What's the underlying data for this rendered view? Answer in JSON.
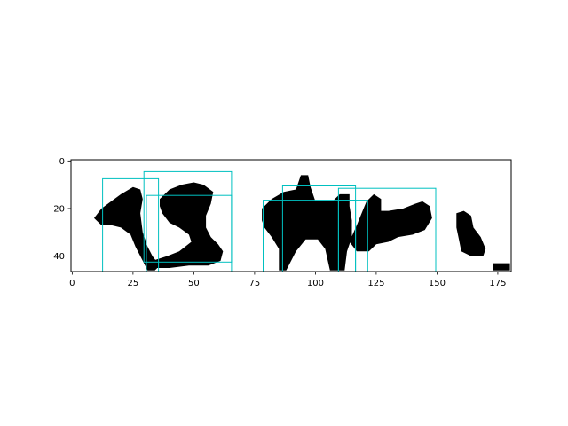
{
  "chart_data": {
    "type": "heatmap",
    "description_kind": "binary image with bounding boxes",
    "xlim": [
      -0.5,
      180.5
    ],
    "ylim": [
      46.5,
      -0.5
    ],
    "x_ticks": [
      0,
      25,
      50,
      75,
      100,
      125,
      150,
      175
    ],
    "y_ticks": [
      0,
      20,
      40
    ],
    "x_tick_labels": [
      "0",
      "25",
      "50",
      "75",
      "100",
      "125",
      "150",
      "175"
    ],
    "y_tick_labels": [
      "0",
      "20",
      "40"
    ],
    "image_colors": {
      "foreground": "#000000",
      "background": "#ffffff"
    },
    "box_color": "#00c0c0",
    "blobs": [
      {
        "name": "blob-1",
        "points": [
          [
            9,
            24
          ],
          [
            12,
            20
          ],
          [
            16,
            17
          ],
          [
            20,
            14
          ],
          [
            25,
            11
          ],
          [
            28,
            12
          ],
          [
            29,
            16
          ],
          [
            28,
            22
          ],
          [
            29,
            30
          ],
          [
            31,
            36
          ],
          [
            33,
            40
          ],
          [
            36,
            44
          ],
          [
            34,
            46
          ],
          [
            31,
            46
          ],
          [
            29,
            42
          ],
          [
            26,
            36
          ],
          [
            24,
            31
          ],
          [
            20,
            28
          ],
          [
            16,
            27
          ],
          [
            12,
            27
          ]
        ]
      },
      {
        "name": "blob-2",
        "points": [
          [
            36,
            16
          ],
          [
            40,
            12
          ],
          [
            45,
            10
          ],
          [
            50,
            9
          ],
          [
            54,
            10
          ],
          [
            58,
            13
          ],
          [
            57,
            18
          ],
          [
            55,
            23
          ],
          [
            55,
            28
          ],
          [
            57,
            32
          ],
          [
            60,
            35
          ],
          [
            62,
            38
          ],
          [
            61,
            42
          ],
          [
            56,
            44
          ],
          [
            48,
            44
          ],
          [
            40,
            45
          ],
          [
            33,
            45
          ],
          [
            33,
            42
          ],
          [
            39,
            40
          ],
          [
            44,
            38
          ],
          [
            49,
            34
          ],
          [
            48,
            31
          ],
          [
            44,
            28
          ],
          [
            40,
            26
          ],
          [
            37,
            22
          ],
          [
            36,
            19
          ]
        ]
      },
      {
        "name": "blob-3",
        "points": [
          [
            78,
            20
          ],
          [
            82,
            16
          ],
          [
            87,
            13
          ],
          [
            92,
            12
          ],
          [
            94,
            6
          ],
          [
            97,
            6
          ],
          [
            98,
            11
          ],
          [
            100,
            17
          ],
          [
            107,
            17
          ],
          [
            110,
            14
          ],
          [
            114,
            14
          ],
          [
            114,
            19
          ],
          [
            115,
            25
          ],
          [
            115,
            32
          ],
          [
            113,
            38
          ],
          [
            112,
            46
          ],
          [
            106,
            46
          ],
          [
            104,
            37
          ],
          [
            101,
            33
          ],
          [
            96,
            33
          ],
          [
            92,
            38
          ],
          [
            88,
            46
          ],
          [
            85,
            46
          ],
          [
            85,
            37
          ],
          [
            82,
            32
          ],
          [
            79,
            28
          ],
          [
            78,
            25
          ]
        ]
      },
      {
        "name": "blob-4",
        "points": [
          [
            114,
            34
          ],
          [
            117,
            27
          ],
          [
            119,
            22
          ],
          [
            121,
            17
          ],
          [
            124,
            14
          ],
          [
            127,
            16
          ],
          [
            127,
            21
          ],
          [
            130,
            21
          ],
          [
            136,
            20
          ],
          [
            141,
            18
          ],
          [
            144,
            17
          ],
          [
            147,
            19
          ],
          [
            148,
            24
          ],
          [
            145,
            29
          ],
          [
            140,
            31
          ],
          [
            134,
            32
          ],
          [
            130,
            34
          ],
          [
            125,
            35
          ],
          [
            122,
            38
          ],
          [
            117,
            38
          ]
        ]
      },
      {
        "name": "blob-5",
        "points": [
          [
            158,
            22
          ],
          [
            161,
            21
          ],
          [
            164,
            23
          ],
          [
            165,
            28
          ],
          [
            168,
            32
          ],
          [
            170,
            37
          ],
          [
            169,
            40
          ],
          [
            164,
            40
          ],
          [
            160,
            38
          ],
          [
            159,
            33
          ],
          [
            158,
            28
          ]
        ]
      },
      {
        "name": "blob-6",
        "points": [
          [
            173,
            43
          ],
          [
            180,
            43
          ],
          [
            180,
            46
          ],
          [
            173,
            46
          ]
        ]
      }
    ],
    "boxes": [
      {
        "name": "box-1",
        "x0": 12.5,
        "y0": 7.5,
        "x1": 35.5,
        "y1": 46.5
      },
      {
        "name": "box-2",
        "x0": 29.5,
        "y0": 4.5,
        "x1": 65.5,
        "y1": 42.5
      },
      {
        "name": "box-3",
        "x0": 30.5,
        "y0": 14.5,
        "x1": 65.5,
        "y1": 46.5
      },
      {
        "name": "box-4",
        "x0": 78.5,
        "y0": 16.5,
        "x1": 116.5,
        "y1": 46.5
      },
      {
        "name": "box-5",
        "x0": 86.5,
        "y0": 10.5,
        "x1": 116.5,
        "y1": 46.5
      },
      {
        "name": "box-6",
        "x0": 109.5,
        "y0": 16.5,
        "x1": 121.5,
        "y1": 46.5
      },
      {
        "name": "box-7",
        "x0": 109.5,
        "y0": 11.5,
        "x1": 149.5,
        "y1": 46.5
      }
    ]
  }
}
